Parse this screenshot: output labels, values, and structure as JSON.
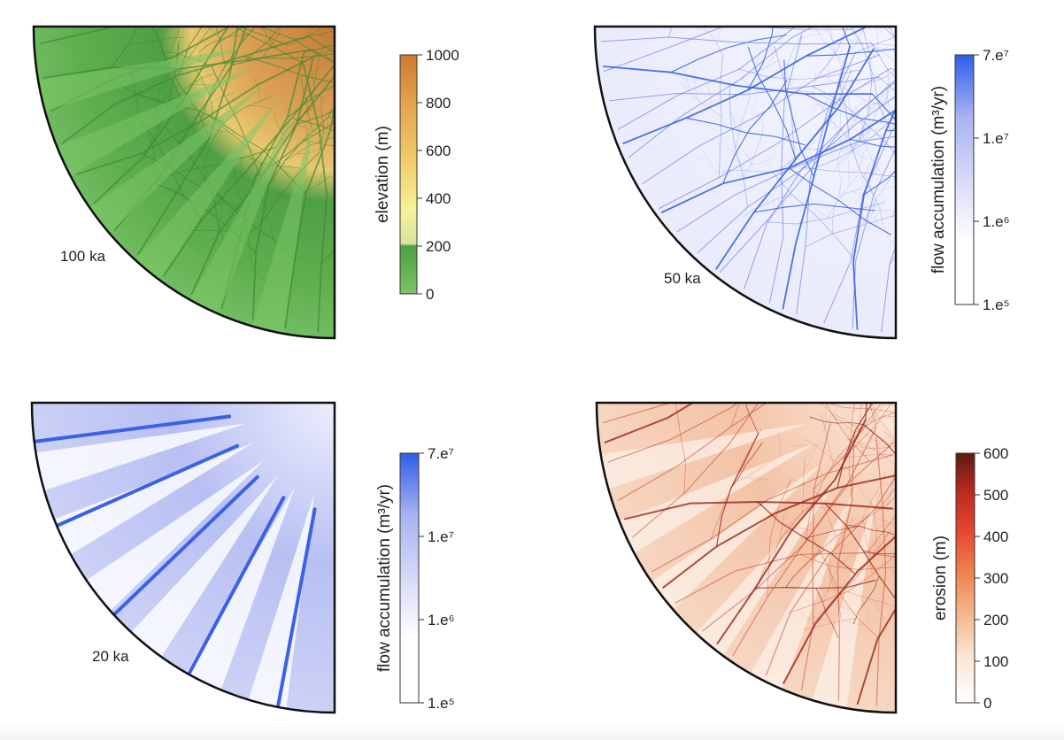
{
  "panels": [
    {
      "id": "elevation",
      "time_label": "100 ka",
      "colorbar": {
        "title": "elevation (m)",
        "ticks": [
          "1000",
          "800",
          "600",
          "400",
          "200",
          "0"
        ],
        "colors": {
          "low": "#6fbf5a",
          "mid_low": "#4f9f45",
          "mid": "#f2ef8f",
          "mid_high": "#e8b85a",
          "high": "#c97a2e"
        }
      }
    },
    {
      "id": "flow50",
      "time_label": "50 ka",
      "colorbar": {
        "title": "flow accumulation (m³/yr)",
        "ticks": [
          "7.e⁷",
          "1.e⁷",
          "1.e⁶",
          "1.e⁵"
        ],
        "colors": {
          "low": "#ffffff",
          "high": "#2f5ee8"
        }
      }
    },
    {
      "id": "flow20",
      "time_label": "20 ka",
      "colorbar": {
        "title": "flow accumulation (m³/yr)",
        "ticks": [
          "7.e⁷",
          "1.e⁷",
          "1.e⁶",
          "1.e⁵"
        ],
        "colors": {
          "low": "#ffffff",
          "high": "#2f5ee8"
        }
      }
    },
    {
      "id": "erosion",
      "time_label": "",
      "colorbar": {
        "title": "erosion (m)",
        "ticks": [
          "600",
          "500",
          "400",
          "300",
          "200",
          "100",
          "0"
        ],
        "colors": {
          "low": "#ffffff",
          "mid": "#f0a070",
          "high": "#e0402a",
          "top": "#6b1a12"
        }
      }
    }
  ]
}
